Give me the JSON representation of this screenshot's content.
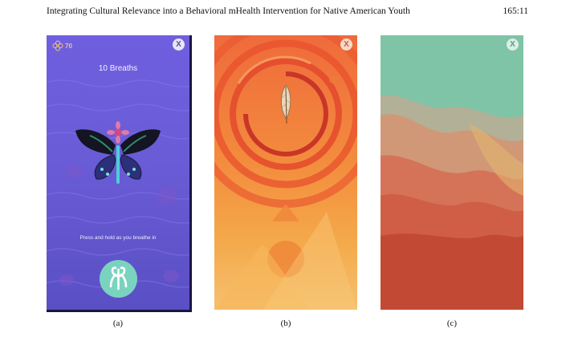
{
  "header": {
    "running_title": "Integrating Cultural Relevance into a Behavioral mHealth Intervention for Native American Youth",
    "page_ref": "165:11"
  },
  "figure": {
    "panel_a": {
      "score": "70",
      "title": "10 Breaths",
      "instruction": "Press and hold as you breathe in",
      "close_label": "X",
      "caption": "(a)"
    },
    "panel_b": {
      "close_label": "X",
      "caption": "(b)"
    },
    "panel_c": {
      "close_label": "X",
      "caption": "(c)"
    }
  },
  "colors": {
    "panel_a_bg": "#6a5cd6",
    "panel_b_bg": "#f38b3d",
    "panel_c_top": "#7fc4a6",
    "panel_c_bottom": "#c24a34",
    "breath_button": "#7ad3bf"
  },
  "icons": [
    "score-flower-icon",
    "butterfly-icon",
    "feather-icon",
    "lungs-icon",
    "close-icon"
  ]
}
